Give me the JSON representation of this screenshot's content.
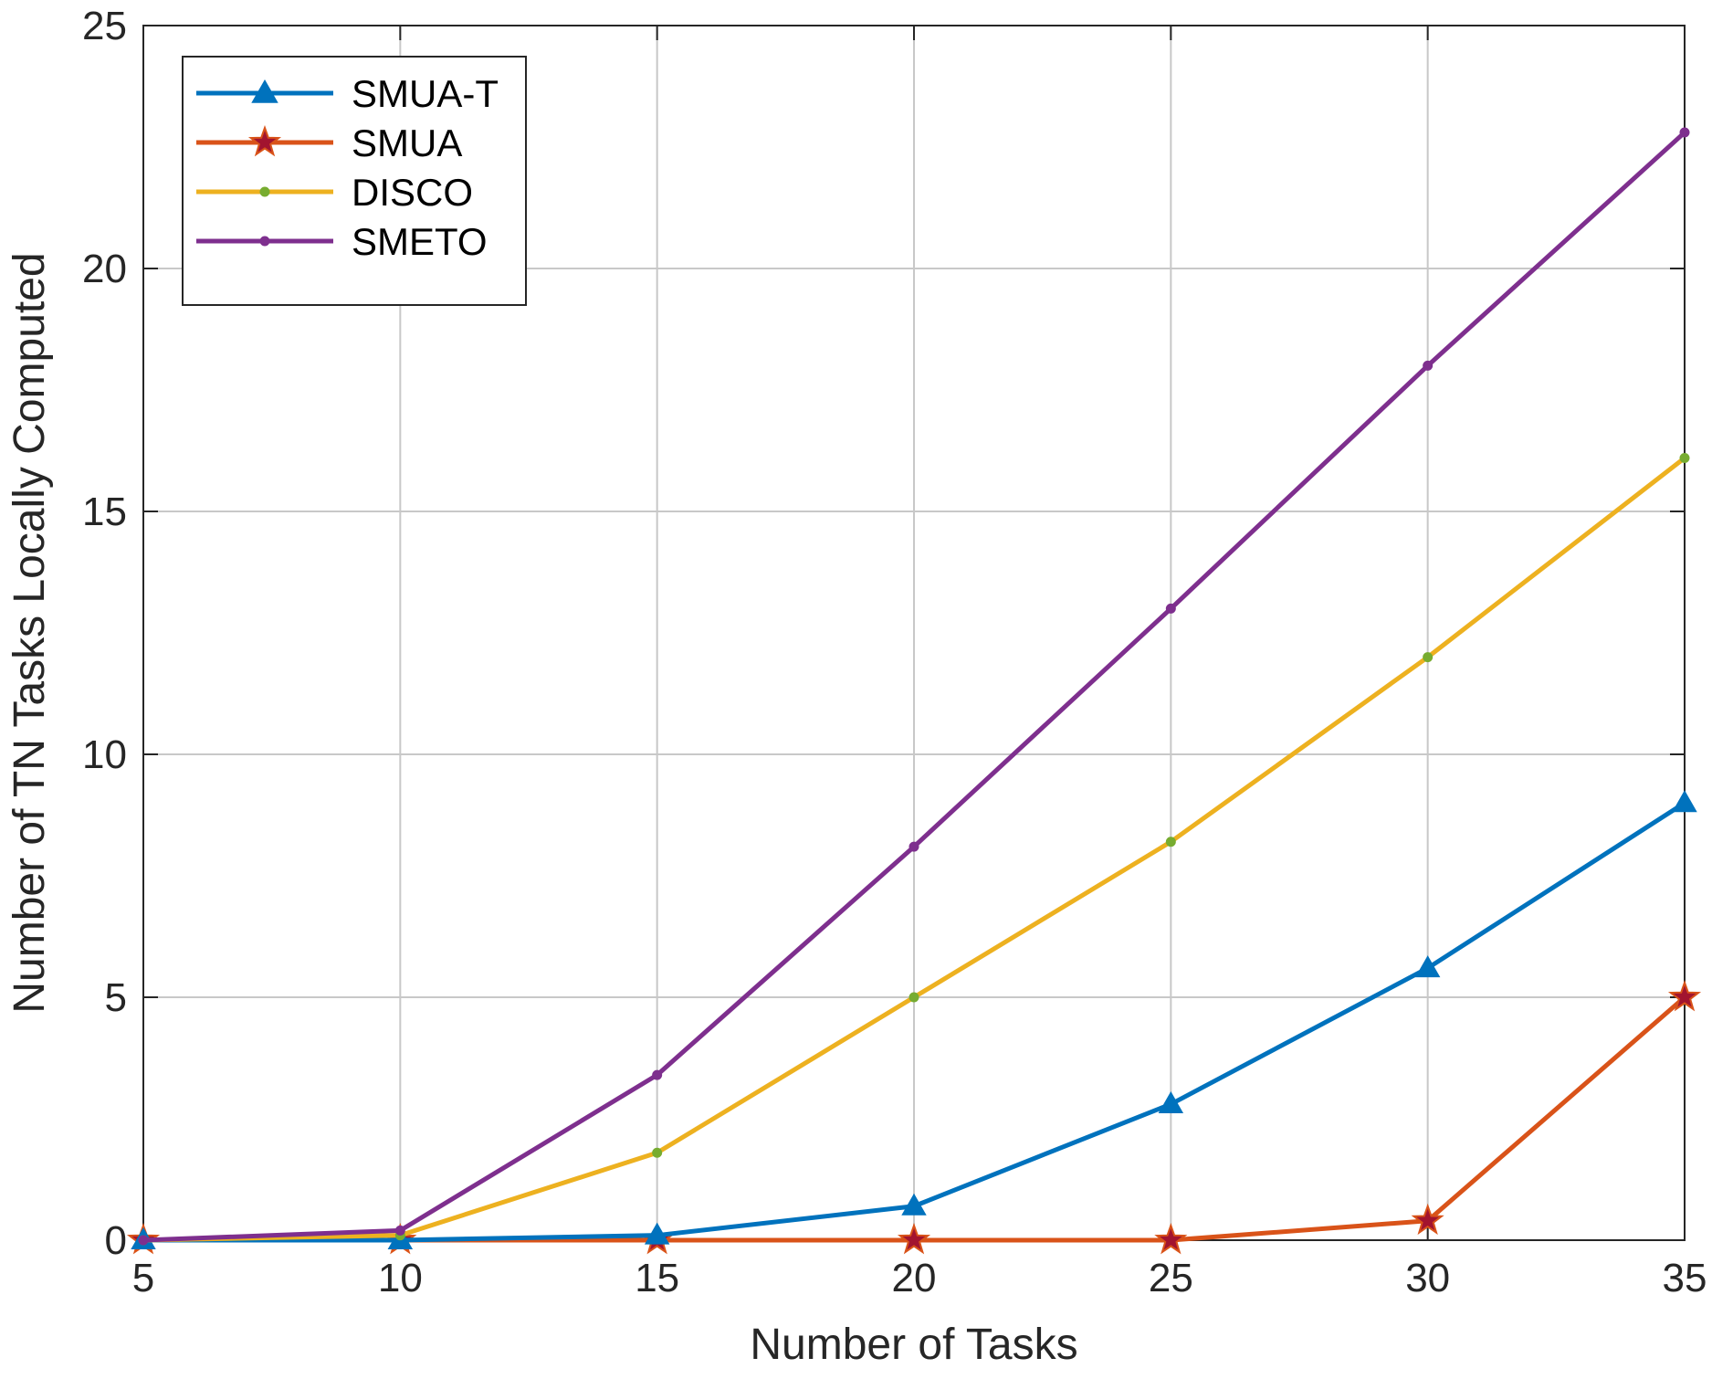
{
  "chart_data": {
    "type": "line",
    "title": "",
    "xlabel": "Number of Tasks",
    "ylabel": "Number of TN Tasks Locally Computed",
    "xlim": [
      5,
      35
    ],
    "ylim": [
      0,
      25
    ],
    "x_ticks": [
      "5",
      "10",
      "15",
      "20",
      "25",
      "30",
      "35"
    ],
    "y_ticks": [
      "0",
      "5",
      "10",
      "15",
      "20",
      "25"
    ],
    "x": [
      5,
      10,
      15,
      20,
      25,
      30,
      35
    ],
    "grid": true,
    "legend_position": "top-left",
    "series": [
      {
        "name": "SMUA-T",
        "color": "#0072BD",
        "marker": "triangle",
        "values": [
          0,
          0,
          0.1,
          0.7,
          2.8,
          5.6,
          9.0
        ]
      },
      {
        "name": "SMUA",
        "color": "#D95319",
        "marker": "star",
        "values": [
          0,
          0,
          0,
          0,
          0,
          0.4,
          5.0
        ]
      },
      {
        "name": "DISCO",
        "color": "#EDB120",
        "marker": "dot",
        "values": [
          0,
          0.1,
          1.8,
          5.0,
          8.2,
          12.0,
          16.1
        ]
      },
      {
        "name": "SMETO",
        "color": "#7E2F8E",
        "marker": "dot",
        "values": [
          0,
          0.2,
          3.4,
          8.1,
          13.0,
          18.0,
          22.8
        ]
      }
    ]
  }
}
